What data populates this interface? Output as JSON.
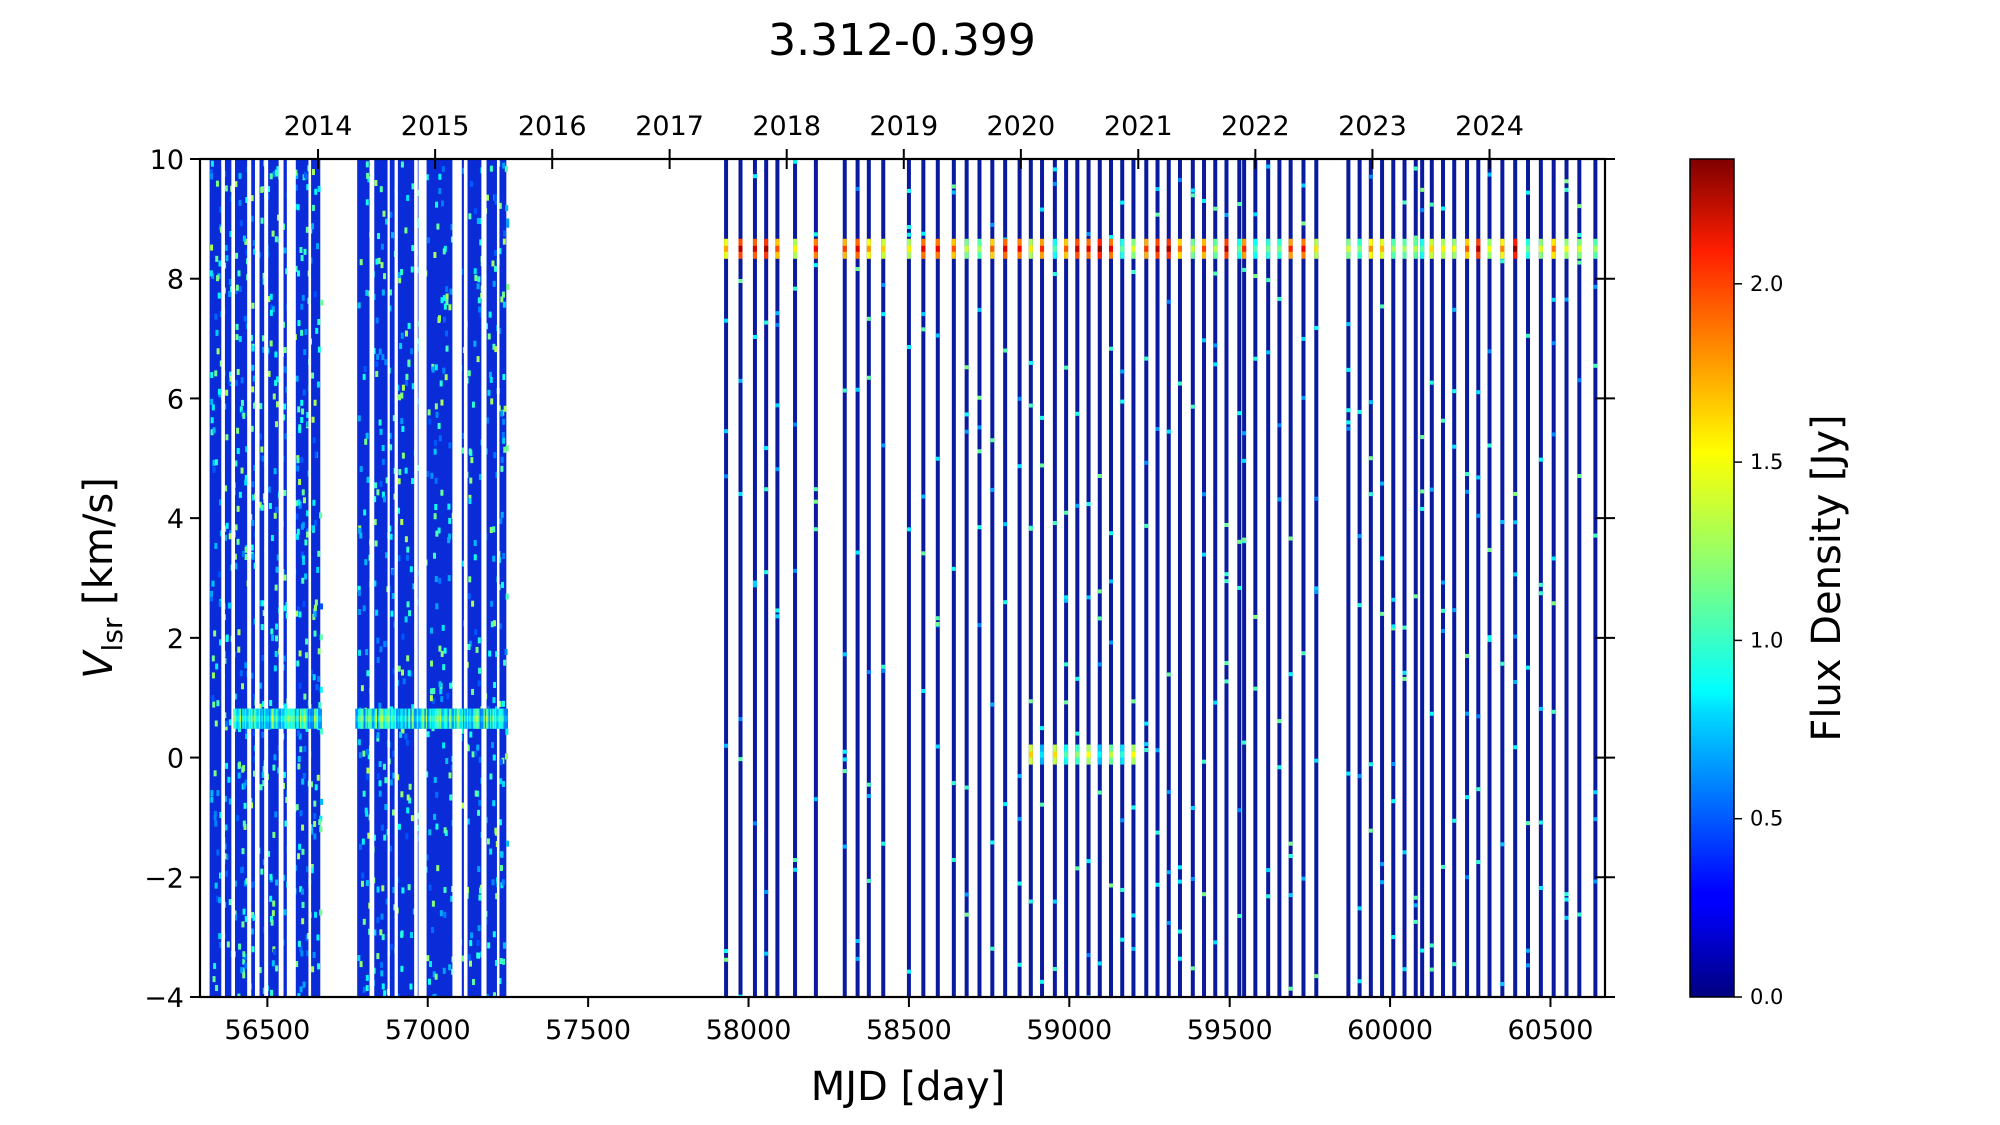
{
  "chart_data": {
    "type": "heatmap",
    "title": "3.312-0.399",
    "xlabel": "MJD [day]",
    "ylabel_main": "V",
    "ylabel_sub": "lsr",
    "ylabel_unit": " [km/s]",
    "xlim": [
      56290,
      60670
    ],
    "ylim": [
      -4,
      10
    ],
    "x_ticks": [
      56500,
      57000,
      57500,
      58000,
      58500,
      59000,
      59500,
      60000,
      60500
    ],
    "y_ticks": [
      -4,
      -2,
      0,
      2,
      4,
      6,
      8,
      10
    ],
    "y_tick_labels": [
      "−4",
      "−2",
      "0",
      "2",
      "4",
      "6",
      "8",
      "10"
    ],
    "top_axis_years": [
      {
        "label": "2014",
        "mjd": 56658
      },
      {
        "label": "2015",
        "mjd": 57023
      },
      {
        "label": "2016",
        "mjd": 57388
      },
      {
        "label": "2017",
        "mjd": 57754
      },
      {
        "label": "2018",
        "mjd": 58119
      },
      {
        "label": "2019",
        "mjd": 58484
      },
      {
        "label": "2020",
        "mjd": 58849
      },
      {
        "label": "2021",
        "mjd": 59215
      },
      {
        "label": "2022",
        "mjd": 59580
      },
      {
        "label": "2023",
        "mjd": 59945
      },
      {
        "label": "2024",
        "mjd": 60310
      }
    ],
    "colorbar": {
      "label": "Flux Density [Jy]",
      "range": [
        0,
        2.35
      ],
      "colormap": "jet",
      "ticks": [
        0.0,
        0.5,
        1.0,
        1.5,
        2.0
      ],
      "tick_labels": [
        "0.0",
        "0.5",
        "1.0",
        "1.5",
        "2.0"
      ]
    },
    "dense_monitoring_blocks": [
      {
        "start": 56320,
        "end": 56665
      },
      {
        "start": 56780,
        "end": 57245
      }
    ],
    "observation_epochs_mjd": [
      57930,
      57975,
      58020,
      58055,
      58090,
      58145,
      58210,
      58300,
      58340,
      58375,
      58420,
      58500,
      58545,
      58590,
      58640,
      58680,
      58720,
      58760,
      58800,
      58845,
      58880,
      58915,
      58955,
      58990,
      59025,
      59060,
      59095,
      59130,
      59165,
      59200,
      59240,
      59275,
      59310,
      59345,
      59385,
      59420,
      59455,
      59490,
      59530,
      59545,
      59580,
      59620,
      59655,
      59690,
      59730,
      59770,
      59870,
      59905,
      59940,
      59975,
      60010,
      60045,
      60080,
      60100,
      60130,
      60165,
      60200,
      60240,
      60275,
      60310,
      60350,
      60390,
      60430,
      60470,
      60510,
      60550,
      60590,
      60640
    ],
    "maser_features": [
      {
        "velocity_kms": 0.65,
        "mjd_range": [
          56400,
          57245
        ],
        "peak_flux_jy": 1.4
      },
      {
        "velocity_kms": 8.5,
        "mjd_range": [
          57930,
          60640
        ],
        "peak_flux_jy": 2.35
      },
      {
        "velocity_kms": 0.05,
        "mjd_range": [
          58850,
          59200
        ],
        "peak_flux_jy": 1.6
      }
    ]
  }
}
